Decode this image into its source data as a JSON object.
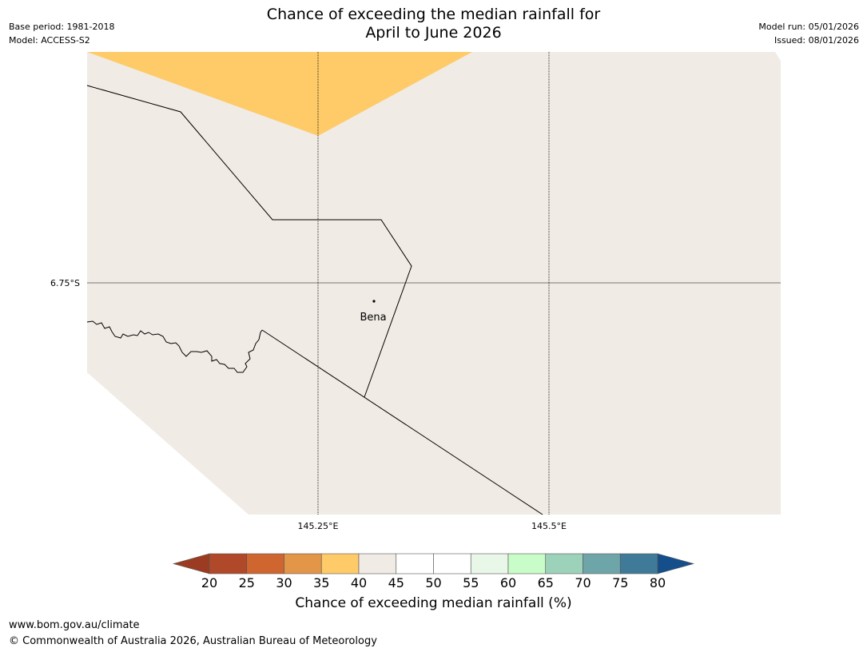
{
  "meta_left": {
    "base_period": "Base period: 1981-2018",
    "model": "Model: ACCESS-S2"
  },
  "meta_right": {
    "model_run": "Model run: 05/01/2026",
    "issued": "Issued: 08/01/2026"
  },
  "title": {
    "line1": "Chance of exceeding the median rainfall for",
    "line2": "April to June 2026"
  },
  "map": {
    "lat_label": "6.75°S",
    "lon_labels": [
      "145.25°E",
      "145.5°E"
    ],
    "place": "Bena",
    "colors": {
      "land": "#f0ebe5",
      "category_35_40": "#fecb68"
    }
  },
  "colorbar": {
    "ticks": [
      "20",
      "25",
      "30",
      "35",
      "40",
      "45",
      "50",
      "55",
      "60",
      "65",
      "70",
      "75",
      "80"
    ],
    "bins": [
      {
        "range": "<20",
        "color": "#9b3c22"
      },
      {
        "range": "20-25",
        "color": "#b0482a"
      },
      {
        "range": "25-30",
        "color": "#cf6630"
      },
      {
        "range": "30-35",
        "color": "#e39548"
      },
      {
        "range": "35-40",
        "color": "#fecb68"
      },
      {
        "range": "40-45",
        "color": "#f0ebe5"
      },
      {
        "range": "45-50",
        "color": "#ffffff"
      },
      {
        "range": "50-55",
        "color": "#ffffff"
      },
      {
        "range": "55-60",
        "color": "#e9f7e9"
      },
      {
        "range": "60-65",
        "color": "#c8fcc8"
      },
      {
        "range": "65-70",
        "color": "#9dd2ba"
      },
      {
        "range": "70-75",
        "color": "#6ea5a8"
      },
      {
        "range": "75-80",
        "color": "#3f7a99"
      },
      {
        "range": ">80",
        "color": "#144f8c"
      }
    ],
    "label": "Chance of exceeding median rainfall (%)"
  },
  "footer": {
    "url": "www.bom.gov.au/climate",
    "copyright": "© Commonwealth of Australia 2026, Australian Bureau of Meteorology"
  }
}
